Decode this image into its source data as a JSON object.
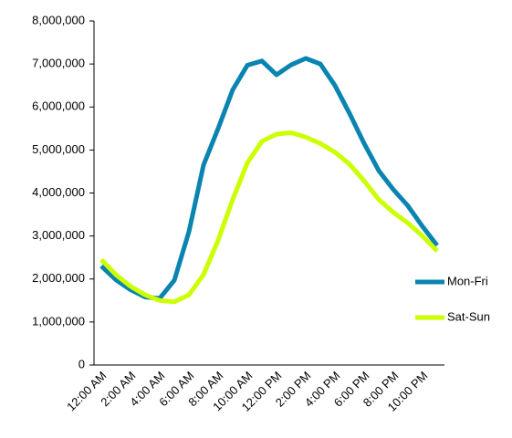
{
  "chart_data": {
    "type": "line",
    "categories": [
      "12:00 AM",
      null,
      "2:00 AM",
      null,
      "4:00 AM",
      null,
      "6:00 AM",
      null,
      "8:00 AM",
      null,
      "10:00 AM",
      null,
      "12:00 PM",
      null,
      "2:00 PM",
      null,
      "4:00 PM",
      null,
      "6:00 PM",
      null,
      "8:00 PM",
      null,
      "10:00 PM",
      null
    ],
    "series": [
      {
        "name": "Mon-Fri",
        "color": "#0a84b0",
        "values": [
          2300000,
          1980000,
          1750000,
          1580000,
          1550000,
          1970000,
          3100000,
          4650000,
          5500000,
          6400000,
          6970000,
          7070000,
          6750000,
          6980000,
          7130000,
          7000000,
          6500000,
          5850000,
          5150000,
          4520000,
          4080000,
          3700000,
          3220000,
          2780000
        ]
      },
      {
        "name": "Sat-Sun",
        "color": "#ccff00",
        "values": [
          2450000,
          2100000,
          1830000,
          1630000,
          1500000,
          1470000,
          1630000,
          2100000,
          2900000,
          3850000,
          4700000,
          5200000,
          5370000,
          5400000,
          5300000,
          5150000,
          4950000,
          4670000,
          4280000,
          3850000,
          3550000,
          3300000,
          3000000,
          2650000
        ]
      }
    ],
    "ylim": [
      0,
      8000000
    ],
    "yticks": [
      0,
      {
        "value": 1000000,
        "label": "1,000,000"
      },
      {
        "value": 2000000,
        "label": "2,000,000"
      },
      {
        "value": 3000000,
        "label": "3,000,000"
      },
      {
        "value": 4000000,
        "label": "4,000,000"
      },
      {
        "value": 5000000,
        "label": "5,000,000"
      },
      {
        "value": 6000000,
        "label": "6,000,000"
      },
      {
        "value": 7000000,
        "label": "7,000,000"
      },
      {
        "value": 8000000,
        "label": "8,000,000"
      }
    ],
    "legend": "right"
  }
}
